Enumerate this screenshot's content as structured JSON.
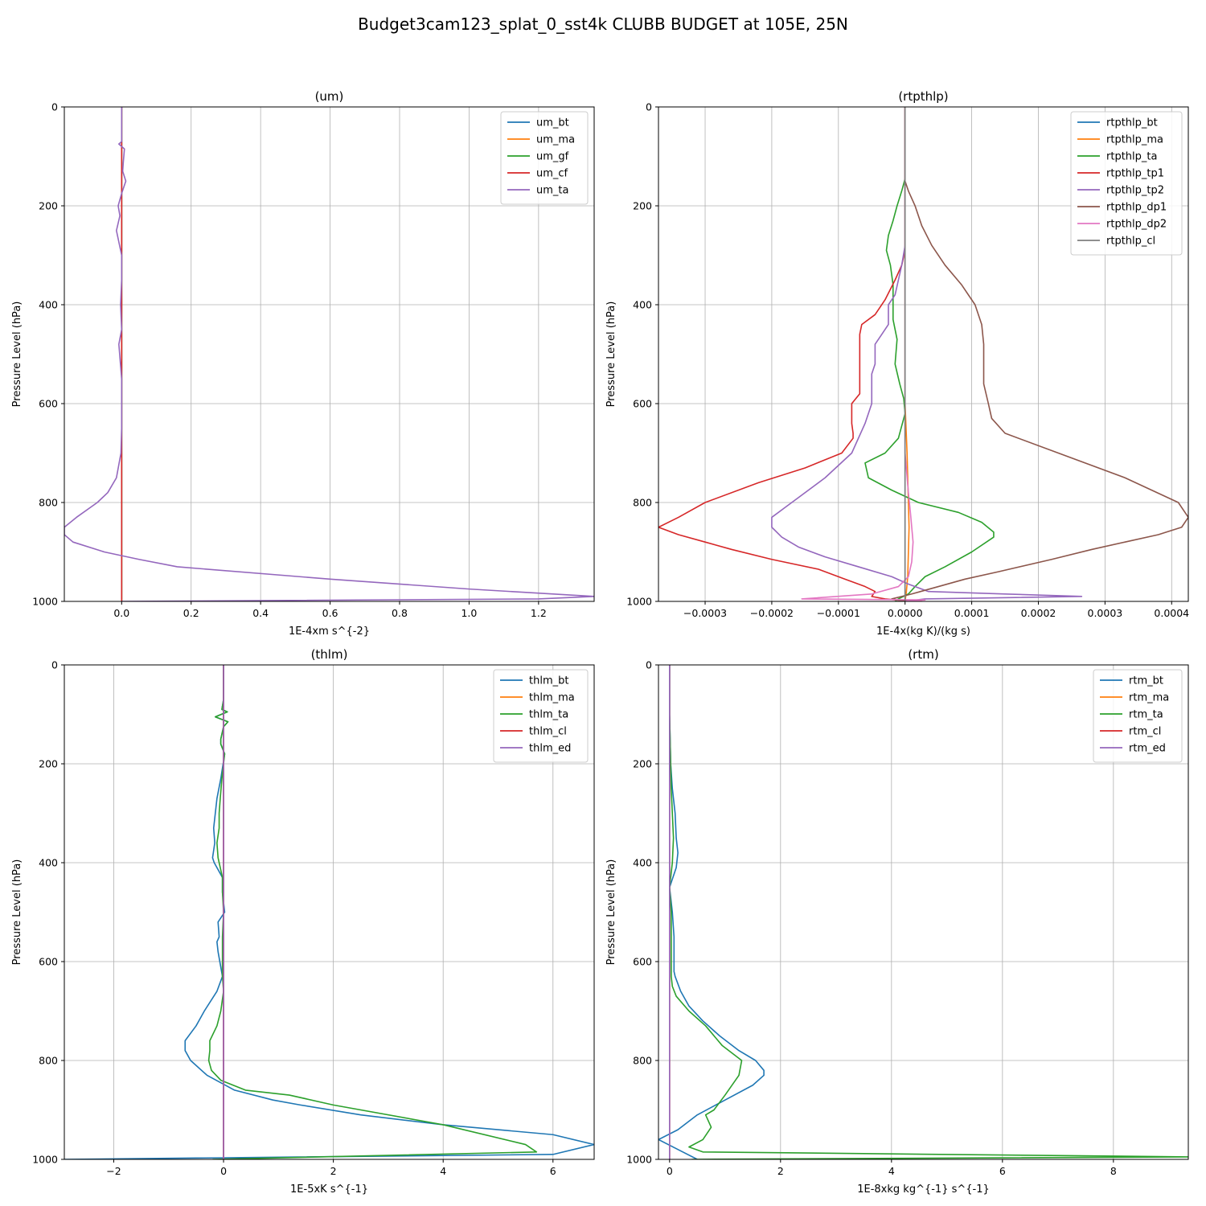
{
  "figure": {
    "title": "Budget3cam123_splat_0_sst4k CLUBB BUDGET at 105E, 25N"
  },
  "chart_data": [
    {
      "type": "line",
      "title": "(um)",
      "xlabel": "1E-4xm s^{-2}",
      "ylabel": "Pressure Level (hPa)",
      "xlim": [
        -0.165,
        1.36
      ],
      "ylim": [
        1000,
        0
      ],
      "xticks": [
        0.0,
        0.2,
        0.4,
        0.6,
        0.8,
        1.0,
        1.2
      ],
      "xtick_labels": [
        "0.0",
        "0.2",
        "0.4",
        "0.6",
        "0.8",
        "1.0",
        "1.2"
      ],
      "yticks": [
        0,
        200,
        400,
        600,
        800,
        1000
      ],
      "ytick_labels": [
        "0",
        "200",
        "400",
        "600",
        "800",
        "1000"
      ],
      "grid": true,
      "legend": "top-right",
      "series": [
        {
          "name": "um_bt",
          "color": "#1f77b4",
          "x": [
            0,
            0
          ],
          "y": [
            0,
            1000
          ]
        },
        {
          "name": "um_ma",
          "color": "#ff7f0e",
          "x": [
            0,
            0
          ],
          "y": [
            0,
            1000
          ]
        },
        {
          "name": "um_gf",
          "color": "#2ca02c",
          "x": [
            0,
            0
          ],
          "y": [
            0,
            1000
          ]
        },
        {
          "name": "um_cf",
          "color": "#d62728",
          "x": [
            0,
            0
          ],
          "y": [
            0,
            1000
          ]
        },
        {
          "name": "um_ta",
          "color": "#9467bd",
          "x": [
            0,
            0,
            -0.008,
            0.008,
            0.005,
            0.003,
            0.012,
            0.0,
            -0.01,
            -0.005,
            -0.015,
            0.0,
            0.0,
            -0.003,
            0.0,
            -0.008,
            0.0,
            0.0,
            0.0,
            -0.002,
            -0.015,
            -0.04,
            -0.07,
            -0.13,
            -0.165,
            -0.165,
            -0.14,
            -0.05,
            0.05,
            0.16,
            0.6,
            1.0,
            1.36,
            1.2,
            0.0
          ],
          "y": [
            0,
            70,
            75,
            85,
            110,
            130,
            150,
            175,
            200,
            220,
            250,
            300,
            350,
            400,
            450,
            480,
            550,
            600,
            650,
            700,
            750,
            780,
            800,
            830,
            850,
            865,
            880,
            900,
            915,
            930,
            955,
            975,
            990,
            995,
            1000
          ]
        }
      ]
    },
    {
      "type": "line",
      "title": "(rtpthlp)",
      "xlabel": "1E-4x(kg K)/(kg s)",
      "ylabel": "Pressure Level (hPa)",
      "xlim": [
        -0.00037,
        0.000425
      ],
      "ylim": [
        1000,
        0
      ],
      "xticks": [
        -0.0003,
        -0.0002,
        -0.0001,
        0.0,
        0.0001,
        0.0002,
        0.0003,
        0.0004
      ],
      "xtick_labels": [
        "−0.0003",
        "−0.0002",
        "−0.0001",
        "0.0000",
        "0.0001",
        "0.0002",
        "0.0003",
        "0.0004"
      ],
      "yticks": [
        0,
        200,
        400,
        600,
        800,
        1000
      ],
      "ytick_labels": [
        "0",
        "200",
        "400",
        "600",
        "800",
        "1000"
      ],
      "grid": true,
      "legend": "top-right",
      "series": [
        {
          "name": "rtpthlp_bt",
          "color": "#1f77b4",
          "x": [
            0,
            0
          ],
          "y": [
            0,
            1000
          ]
        },
        {
          "name": "rtpthlp_ma",
          "color": "#ff7f0e",
          "x": [
            0,
            0,
            3e-06,
            5e-06,
            6e-06,
            5e-06,
            4e-06,
            2e-06,
            0
          ],
          "y": [
            0,
            600,
            700,
            800,
            850,
            900,
            950,
            980,
            1000
          ]
        },
        {
          "name": "rtpthlp_ta",
          "color": "#2ca02c",
          "x": [
            0,
            0,
            -5e-06,
            -1.2e-05,
            -1.8e-05,
            -2.5e-05,
            -2.8e-05,
            -2.2e-05,
            -1.8e-05,
            -1.8e-05,
            -1.8e-05,
            -1.2e-05,
            -1.5e-05,
            -8e-06,
            -2e-06,
            0.0,
            -1e-05,
            -3e-05,
            -6e-05,
            -5.5e-05,
            -2e-05,
            2e-05,
            8e-05,
            0.000115,
            0.000133,
            0.000133,
            0.0001,
            6e-05,
            3e-05,
            1.5e-05,
            5e-06,
            -1e-05,
            -1.5e-05,
            0
          ],
          "y": [
            0,
            145,
            170,
            200,
            230,
            260,
            290,
            320,
            360,
            400,
            430,
            470,
            520,
            560,
            590,
            620,
            670,
            700,
            720,
            750,
            775,
            800,
            820,
            840,
            860,
            870,
            900,
            930,
            950,
            970,
            985,
            995,
            1000,
            1000
          ]
        },
        {
          "name": "rtpthlp_tp1",
          "color": "#d62728",
          "x": [
            0,
            0,
            0,
            0.0,
            -5e-06,
            -1.5e-05,
            -3e-05,
            -4.5e-05,
            -6.5e-05,
            -6.8e-05,
            -6.8e-05,
            -6.8e-05,
            -6.8e-05,
            -6.8e-05,
            -8e-05,
            -8e-05,
            -8e-05,
            -7.8e-05,
            -7.8e-05,
            -9.5e-05,
            -0.00015,
            -0.00022,
            -0.0003,
            -0.00034,
            -0.00037,
            -0.00034,
            -0.0003,
            -0.00026,
            -0.0002,
            -0.00013,
            -9e-05,
            -6e-05,
            -4.5e-05,
            -5e-05,
            -3e-05,
            1e-05,
            2.5e-05,
            0
          ],
          "y": [
            0,
            150,
            250,
            290,
            320,
            350,
            390,
            420,
            440,
            460,
            500,
            540,
            560,
            580,
            600,
            620,
            640,
            660,
            670,
            700,
            730,
            760,
            800,
            830,
            850,
            865,
            880,
            895,
            915,
            935,
            955,
            970,
            980,
            990,
            995,
            1000,
            1000,
            1000
          ]
        },
        {
          "name": "rtpthlp_tp2",
          "color": "#9467bd",
          "x": [
            0,
            0,
            0,
            -5e-06,
            -1e-05,
            -1.5e-05,
            -2.5e-05,
            -2.5e-05,
            -2.5e-05,
            -3.5e-05,
            -4.5e-05,
            -4.5e-05,
            -5e-05,
            -5e-05,
            -5e-05,
            -6e-05,
            -8e-05,
            -0.00012,
            -0.00016,
            -0.00018,
            -0.0002,
            -0.0002,
            -0.000185,
            -0.00016,
            -0.00012,
            -7e-05,
            -2e-05,
            5e-06,
            3.5e-05,
            0.00015,
            0.000265,
            3e-05,
            0
          ],
          "y": [
            0,
            240,
            280,
            320,
            350,
            380,
            400,
            420,
            440,
            460,
            480,
            520,
            540,
            560,
            600,
            640,
            700,
            750,
            790,
            810,
            830,
            850,
            870,
            890,
            910,
            930,
            950,
            965,
            980,
            985,
            990,
            995,
            1000
          ]
        },
        {
          "name": "rtpthlp_dp1",
          "color": "#8c564b",
          "x": [
            0,
            0,
            5e-06,
            1.5e-05,
            2.5e-05,
            4e-05,
            6e-05,
            8.5e-05,
            0.000105,
            0.000115,
            0.000118,
            0.000118,
            0.000118,
            0.000125,
            0.00013,
            0.00015,
            0.00023,
            0.00033,
            0.00041,
            0.000425,
            0.000415,
            0.00038,
            0.00033,
            0.00028,
            0.00022,
            0.00014,
            9e-05,
            5e-05,
            1e-05,
            -2e-05,
            0
          ],
          "y": [
            0,
            150,
            170,
            200,
            240,
            280,
            320,
            360,
            400,
            440,
            480,
            520,
            560,
            600,
            630,
            660,
            700,
            750,
            800,
            830,
            850,
            865,
            880,
            895,
            915,
            940,
            955,
            970,
            985,
            995,
            1000
          ]
        },
        {
          "name": "rtpthlp_dp2",
          "color": "#e377c2",
          "x": [
            0,
            0,
            5e-06,
            8e-06,
            1e-05,
            1.2e-05,
            1e-05,
            5e-06,
            -1e-05,
            -5e-05,
            -0.000155,
            3e-05,
            0
          ],
          "y": [
            0,
            700,
            780,
            820,
            850,
            880,
            920,
            950,
            970,
            985,
            995,
            997,
            1000
          ]
        },
        {
          "name": "rtpthlp_cl",
          "color": "#7f7f7f",
          "x": [
            0,
            0
          ],
          "y": [
            0,
            1000
          ]
        }
      ]
    },
    {
      "type": "line",
      "title": "(thlm)",
      "xlabel": "1E-5xK s^{-1}",
      "ylabel": "Pressure Level (hPa)",
      "xlim": [
        -2.9,
        6.75
      ],
      "ylim": [
        1000,
        0
      ],
      "xticks": [
        -2,
        0,
        2,
        4,
        6
      ],
      "xtick_labels": [
        "−2",
        "0",
        "2",
        "4",
        "6"
      ],
      "yticks": [
        0,
        200,
        400,
        600,
        800,
        1000
      ],
      "ytick_labels": [
        "0",
        "200",
        "400",
        "600",
        "800",
        "1000"
      ],
      "grid": true,
      "legend": "top-right",
      "series": [
        {
          "name": "thlm_bt",
          "color": "#1f77b4",
          "x": [
            0,
            0,
            -0.03,
            0.07,
            -0.15,
            0.08,
            0.0,
            -0.05,
            -0.05,
            0.02,
            -0.05,
            -0.12,
            -0.15,
            -0.18,
            -0.16,
            -0.2,
            -0.17,
            -0.02,
            -0.02,
            0.02,
            -0.1,
            -0.08,
            -0.12,
            -0.1,
            -0.02,
            -0.12,
            -0.35,
            -0.5,
            -0.7,
            -0.7,
            -0.6,
            -0.3,
            0.2,
            0.9,
            1.4,
            2.5,
            4.0,
            6.0,
            6.75,
            6.0,
            -2.9
          ],
          "y": [
            0,
            70,
            90,
            95,
            105,
            115,
            125,
            150,
            160,
            180,
            230,
            270,
            300,
            330,
            360,
            390,
            400,
            430,
            460,
            500,
            520,
            550,
            560,
            580,
            630,
            660,
            700,
            730,
            760,
            780,
            800,
            830,
            860,
            880,
            890,
            910,
            930,
            950,
            970,
            990,
            1000
          ]
        },
        {
          "name": "thlm_ma",
          "color": "#ff7f0e",
          "x": [
            0,
            0
          ],
          "y": [
            0,
            1000
          ]
        },
        {
          "name": "thlm_ta",
          "color": "#2ca02c",
          "x": [
            0,
            0,
            -0.03,
            0.07,
            -0.15,
            0.08,
            0.0,
            -0.05,
            -0.05,
            0.02,
            -0.03,
            -0.06,
            -0.08,
            -0.08,
            -0.12,
            -0.1,
            -0.02,
            -0.02,
            0.0,
            -0.02,
            -0.02,
            -0.02,
            0.0,
            -0.05,
            -0.12,
            -0.25,
            -0.25,
            -0.27,
            -0.22,
            -0.05,
            0.4,
            1.2,
            2.0,
            4.0,
            5.5,
            5.7,
            -0.2
          ],
          "y": [
            0,
            70,
            90,
            95,
            105,
            115,
            125,
            150,
            160,
            180,
            230,
            270,
            300,
            330,
            360,
            390,
            430,
            460,
            500,
            550,
            600,
            630,
            660,
            700,
            730,
            760,
            780,
            800,
            820,
            840,
            860,
            870,
            890,
            930,
            970,
            985,
            1000
          ]
        },
        {
          "name": "thlm_cl",
          "color": "#d62728",
          "x": [
            0,
            0
          ],
          "y": [
            0,
            1000
          ]
        },
        {
          "name": "thlm_ed",
          "color": "#9467bd",
          "x": [
            0,
            0
          ],
          "y": [
            0,
            1000
          ]
        }
      ]
    },
    {
      "type": "line",
      "title": "(rtm)",
      "xlabel": "1E-8xkg kg^{-1} s^{-1}",
      "ylabel": "Pressure Level (hPa)",
      "xlim": [
        -0.2,
        9.35
      ],
      "ylim": [
        1000,
        0
      ],
      "xticks": [
        0,
        2,
        4,
        6,
        8
      ],
      "xtick_labels": [
        "0",
        "2",
        "4",
        "6",
        "8"
      ],
      "yticks": [
        0,
        200,
        400,
        600,
        800,
        1000
      ],
      "ytick_labels": [
        "0",
        "200",
        "400",
        "600",
        "800",
        "1000"
      ],
      "grid": true,
      "legend": "top-right",
      "series": [
        {
          "name": "rtm_bt",
          "color": "#1f77b4",
          "x": [
            0,
            0,
            0.02,
            0.05,
            0.1,
            0.12,
            0.15,
            0.12,
            0.0,
            0.05,
            0.08,
            0.08,
            0.08,
            0.1,
            0.2,
            0.35,
            0.6,
            0.9,
            1.25,
            1.55,
            1.7,
            1.7,
            1.5,
            1.0,
            0.5,
            0.15,
            -0.2,
            0.15,
            0.5
          ],
          "y": [
            0,
            100,
            200,
            250,
            300,
            350,
            380,
            410,
            450,
            500,
            550,
            600,
            620,
            630,
            660,
            690,
            720,
            750,
            780,
            800,
            820,
            830,
            850,
            880,
            910,
            940,
            960,
            980,
            1000
          ]
        },
        {
          "name": "rtm_ma",
          "color": "#ff7f0e",
          "x": [
            0,
            0
          ],
          "y": [
            0,
            1000
          ]
        },
        {
          "name": "rtm_ta",
          "color": "#2ca02c",
          "x": [
            0,
            0,
            0.02,
            0.03,
            0.05,
            0.07,
            0.05,
            0.0,
            0.03,
            0.03,
            0.03,
            0.03,
            0.05,
            0.12,
            0.35,
            0.65,
            0.95,
            1.3,
            1.25,
            1.0,
            0.8,
            0.65,
            0.75,
            0.6,
            0.35,
            0.6,
            9.35,
            0.4
          ],
          "y": [
            0,
            100,
            200,
            250,
            300,
            350,
            400,
            450,
            500,
            550,
            600,
            630,
            650,
            670,
            700,
            730,
            770,
            800,
            830,
            870,
            900,
            910,
            935,
            960,
            975,
            985,
            995,
            1000
          ]
        },
        {
          "name": "rtm_cl",
          "color": "#d62728",
          "x": [
            0,
            0
          ],
          "y": [
            0,
            1000
          ]
        },
        {
          "name": "rtm_ed",
          "color": "#9467bd",
          "x": [
            0,
            0
          ],
          "y": [
            0,
            1000
          ]
        }
      ]
    }
  ]
}
